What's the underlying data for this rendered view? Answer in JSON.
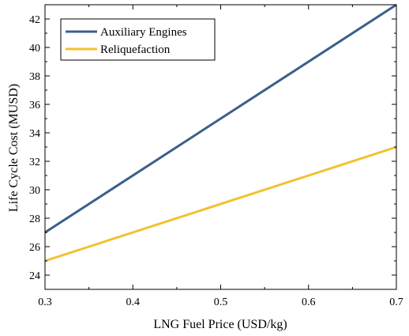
{
  "chart_data": {
    "type": "line",
    "xlabel": "LNG Fuel Price (USD/kg)",
    "ylabel": "Life Cycle Cost (MUSD)",
    "xlim": [
      0.3,
      0.7
    ],
    "ylim": [
      23,
      43
    ],
    "x_ticks": [
      "0.3",
      "0.4",
      "0.5",
      "0.6",
      "0.7"
    ],
    "y_ticks": [
      "24",
      "26",
      "28",
      "30",
      "32",
      "34",
      "36",
      "38",
      "40",
      "42"
    ],
    "grid": false,
    "legend_position": "top-left",
    "series": [
      {
        "name": "Auxiliary Engines",
        "color": "#3b5f8a",
        "x": [
          0.3,
          0.7
        ],
        "y": [
          27,
          43
        ]
      },
      {
        "name": "Reliquefaction",
        "color": "#f2c12e",
        "x": [
          0.3,
          0.7
        ],
        "y": [
          25,
          33
        ]
      }
    ]
  }
}
